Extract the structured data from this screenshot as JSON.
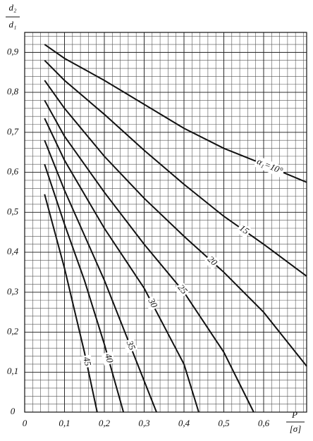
{
  "chart_data": {
    "type": "line",
    "ylabel": {
      "numerator": "d₂",
      "denominator": "d₁"
    },
    "xlabel": {
      "numerator": "P",
      "denominator": "[σ]"
    },
    "xlim": [
      0,
      0.708
    ],
    "ylim": [
      0,
      0.95
    ],
    "grid": true,
    "color": "#111111",
    "xticks": [
      {
        "value": 0,
        "label": "0"
      },
      {
        "value": 0.1,
        "label": "0,1"
      },
      {
        "value": 0.2,
        "label": "0,2"
      },
      {
        "value": 0.3,
        "label": "0,3"
      },
      {
        "value": 0.4,
        "label": "0,4"
      },
      {
        "value": 0.5,
        "label": "0,5"
      },
      {
        "value": 0.6,
        "label": "0,6"
      }
    ],
    "yticks": [
      {
        "value": 0,
        "label": "0"
      },
      {
        "value": 0.1,
        "label": "0,1"
      },
      {
        "value": 0.2,
        "label": "0,2"
      },
      {
        "value": 0.3,
        "label": "0,3"
      },
      {
        "value": 0.4,
        "label": "0,4"
      },
      {
        "value": 0.5,
        "label": "0,5"
      },
      {
        "value": 0.6,
        "label": "0,6"
      },
      {
        "value": 0.7,
        "label": "0,7"
      },
      {
        "value": 0.8,
        "label": "0,8"
      },
      {
        "value": 0.9,
        "label": "0,9"
      }
    ],
    "series": [
      {
        "name": "α₁=10°",
        "x": [
          0.05,
          0.1,
          0.2,
          0.3,
          0.4,
          0.5,
          0.6,
          0.708
        ],
        "values": [
          0.92,
          0.885,
          0.83,
          0.77,
          0.71,
          0.66,
          0.62,
          0.575
        ]
      },
      {
        "name": "15",
        "x": [
          0.05,
          0.1,
          0.2,
          0.3,
          0.4,
          0.5,
          0.6,
          0.708
        ],
        "values": [
          0.88,
          0.83,
          0.745,
          0.655,
          0.57,
          0.49,
          0.42,
          0.34
        ]
      },
      {
        "name": "20",
        "x": [
          0.05,
          0.1,
          0.2,
          0.3,
          0.4,
          0.5,
          0.6,
          0.708
        ],
        "values": [
          0.83,
          0.76,
          0.64,
          0.535,
          0.44,
          0.35,
          0.25,
          0.115
        ]
      },
      {
        "name": "25",
        "x": [
          0.05,
          0.1,
          0.2,
          0.3,
          0.4,
          0.5,
          0.575
        ],
        "values": [
          0.78,
          0.69,
          0.55,
          0.42,
          0.3,
          0.15,
          0
        ]
      },
      {
        "name": "30",
        "x": [
          0.05,
          0.1,
          0.2,
          0.3,
          0.4,
          0.437
        ],
        "values": [
          0.735,
          0.63,
          0.46,
          0.31,
          0.12,
          0
        ]
      },
      {
        "name": "35",
        "x": [
          0.05,
          0.1,
          0.2,
          0.331
        ],
        "values": [
          0.68,
          0.555,
          0.33,
          0
        ]
      },
      {
        "name": "40",
        "x": [
          0.05,
          0.1,
          0.15,
          0.2,
          0.248
        ],
        "values": [
          0.62,
          0.47,
          0.33,
          0.17,
          0
        ]
      },
      {
        "name": "45",
        "x": [
          0.05,
          0.1,
          0.15,
          0.182
        ],
        "values": [
          0.545,
          0.36,
          0.15,
          0
        ]
      }
    ]
  }
}
